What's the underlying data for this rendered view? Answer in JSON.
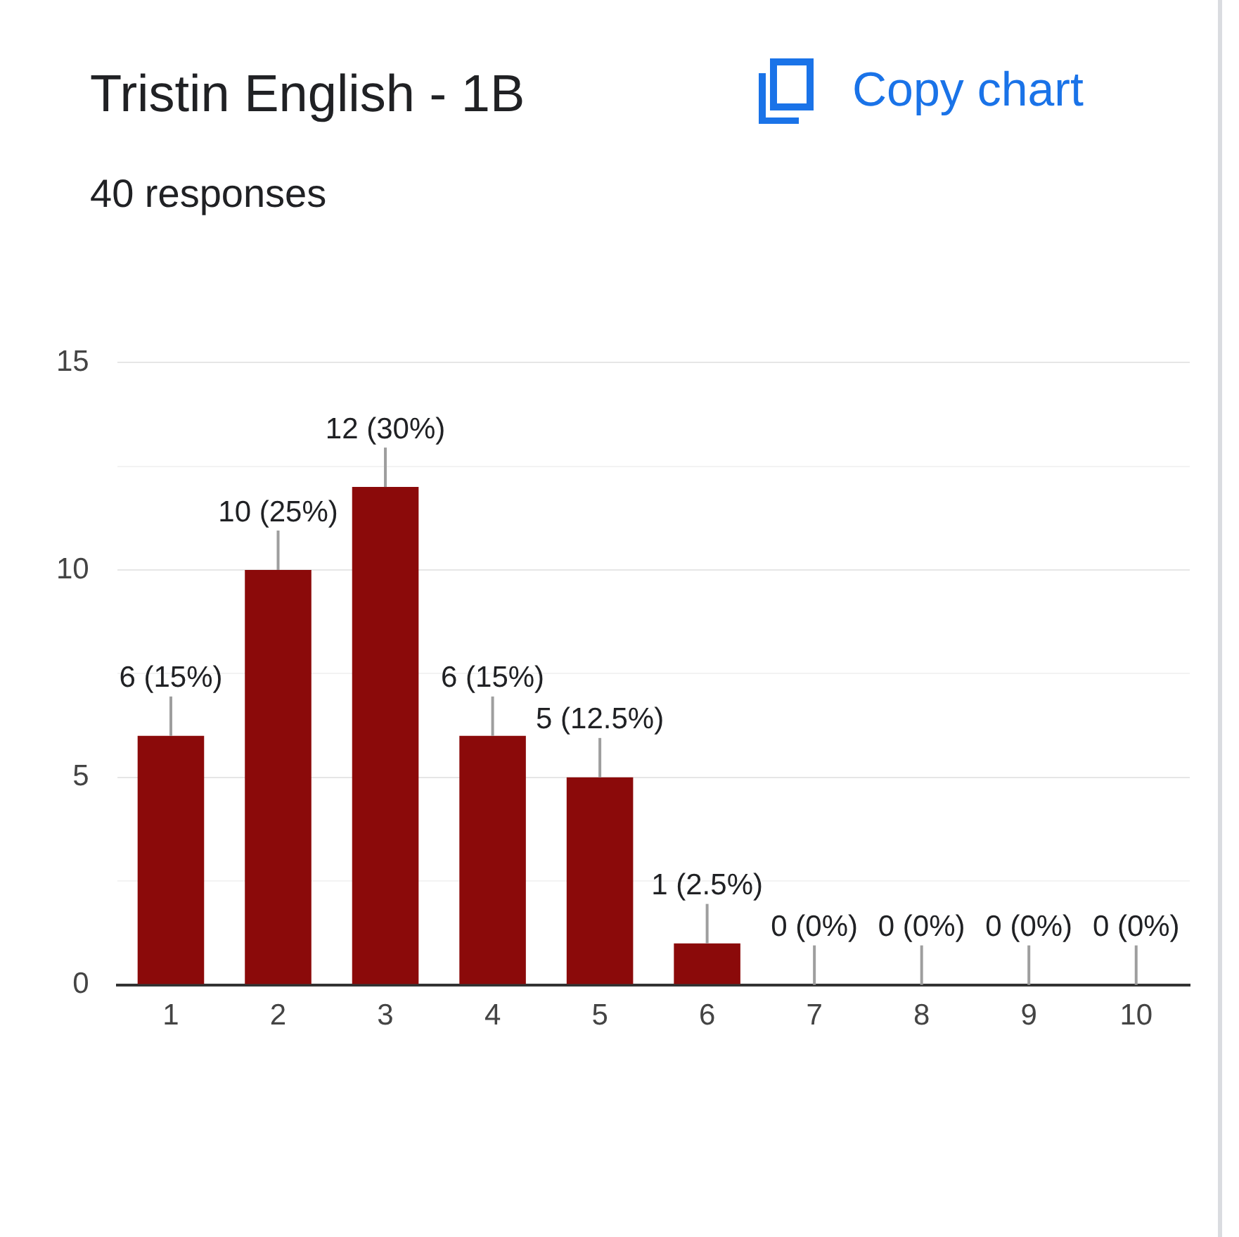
{
  "chart_data": {
    "type": "bar",
    "title": "Tristin English - 1B",
    "subtitle": "40 responses",
    "annotations": [
      "Copy chart"
    ],
    "categories": [
      "1",
      "2",
      "3",
      "4",
      "5",
      "6",
      "7",
      "8",
      "9",
      "10"
    ],
    "values": [
      6,
      10,
      12,
      6,
      5,
      1,
      0,
      0,
      0,
      0
    ],
    "value_labels": [
      "6 (15%)",
      "10 (25%)",
      "12 (30%)",
      "6 (15%)",
      "5 (12.5%)",
      "1 (2.5%)",
      "0 (0%)",
      "0 (0%)",
      "0 (0%)",
      "0 (0%)"
    ],
    "color": "#8b0a0a",
    "ylim": [
      0,
      15
    ],
    "yticks": [
      0,
      {
        "value": 2.5,
        "label": null
      },
      5,
      {
        "value": 7.5,
        "label": null
      },
      10,
      {
        "value": 12.5,
        "label": null
      },
      15
    ],
    "grid": "y",
    "legend": false
  }
}
